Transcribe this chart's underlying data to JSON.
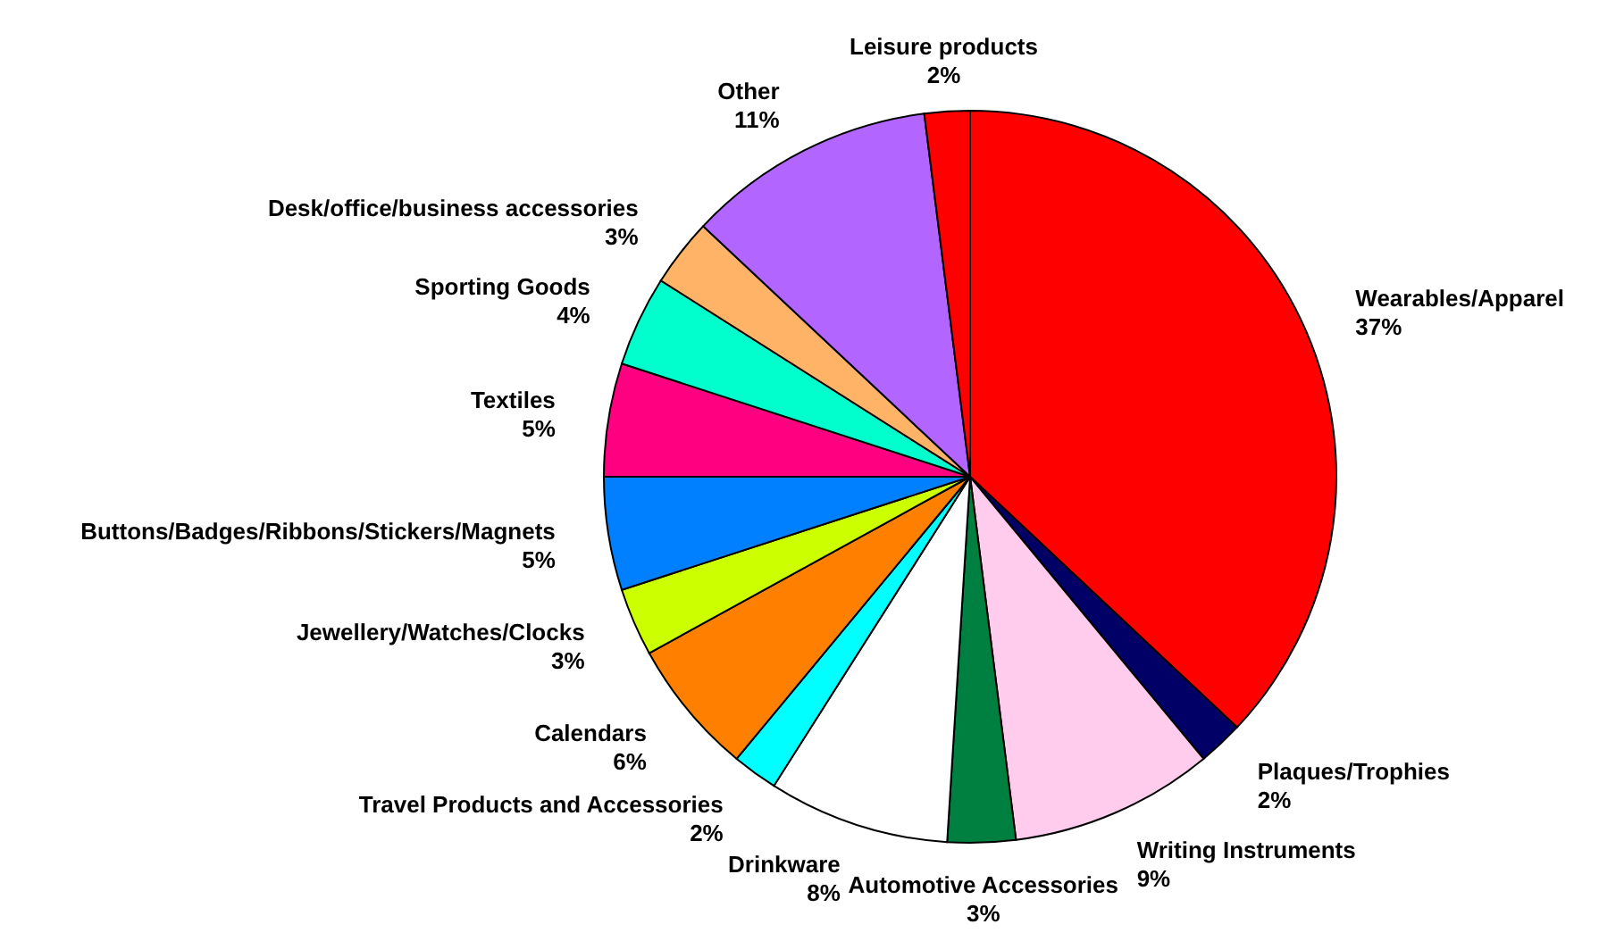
{
  "chart_data": {
    "type": "pie",
    "categories": [
      "Wearables/Apparel",
      "Plaques/Trophies",
      "Writing Instruments",
      "Automotive Accessories",
      "Drinkware",
      "Travel Products and Accessories",
      "Calendars",
      "Jewellery/Watches/Clocks",
      "Buttons/Badges/Ribbons/Stickers/Magnets",
      "Textiles",
      "Sporting Goods",
      "Desk/office/business accessories",
      "Other",
      "Leisure products"
    ],
    "values": [
      37,
      2,
      9,
      3,
      8,
      2,
      6,
      3,
      5,
      5,
      4,
      3,
      11,
      2
    ],
    "value_labels": [
      "37%",
      "2%",
      "9%",
      "3%",
      "8%",
      "2%",
      "6%",
      "3%",
      "5%",
      "5%",
      "4%",
      "3%",
      "11%",
      "2%"
    ],
    "colors": [
      "#ff0000",
      "#000066",
      "#ffccee",
      "#008040",
      "#ffffff",
      "#00ffff",
      "#ff8000",
      "#ccff00",
      "#0080ff",
      "#ff0080",
      "#00ffcc",
      "#ffb366",
      "#b366ff",
      "#ff0000"
    ]
  }
}
